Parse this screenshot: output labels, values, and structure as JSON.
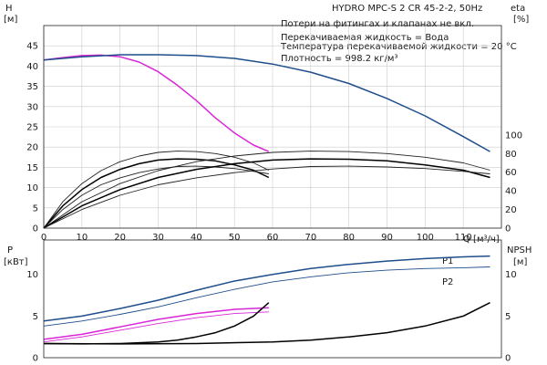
{
  "chart_data": [
    {
      "type": "line",
      "name": "pump-performance",
      "title": "HYDRO MPC-S 2 CR 45-2-2, 50Hz",
      "annotations": [
        "Потери на фитингах и клапанах не вкл.",
        "Перекачиваемая жидкость = Вода",
        "Температура перекачиваемой жидкости = 20 °C",
        "Плотность = 998.2 кг/м³"
      ],
      "xlabel": "Q [м³/ч]",
      "xlim": [
        0,
        120
      ],
      "xticks": [
        "0",
        "10",
        "20",
        "30",
        "40",
        "50",
        "60",
        "70",
        "80",
        "90",
        "100",
        "110"
      ],
      "ylabel_left": [
        "H",
        "[м]"
      ],
      "ylim_left": [
        0,
        50
      ],
      "yticks_left": [
        "0",
        "5",
        "10",
        "15",
        "20",
        "25",
        "30",
        "35",
        "40",
        "45"
      ],
      "ylabel_right": [
        "eta",
        "[%]"
      ],
      "ylim_right": [
        0,
        217.4
      ],
      "yticks_right": [
        "0",
        "20",
        "40",
        "60",
        "80",
        "100"
      ],
      "grid": true,
      "series": [
        {
          "axis": "left",
          "color": "#d926d9",
          "width": 1.5,
          "x": [
            0,
            5,
            10,
            15,
            20,
            25,
            30,
            35,
            40,
            45,
            50,
            55,
            59
          ],
          "y": [
            41.5,
            42.1,
            42.6,
            42.7,
            42.3,
            41.0,
            38.6,
            35.3,
            31.5,
            27.2,
            23.5,
            20.5,
            18.9
          ]
        },
        {
          "axis": "left",
          "color": "#1f4e8c",
          "width": 1.5,
          "x": [
            0,
            10,
            20,
            30,
            40,
            50,
            60,
            70,
            80,
            90,
            100,
            110,
            117
          ],
          "y": [
            41.5,
            42.3,
            42.8,
            42.8,
            42.6,
            41.9,
            40.5,
            38.5,
            35.7,
            32.0,
            27.7,
            22.6,
            18.9
          ]
        },
        {
          "axis": "left",
          "color": "#222222",
          "width": 0.9,
          "x": [
            0,
            5,
            10,
            15,
            20,
            25,
            30,
            35,
            40,
            45,
            50,
            55,
            59
          ],
          "y": [
            0,
            6.5,
            11,
            14.2,
            16.4,
            17.8,
            18.7,
            19.0,
            18.9,
            18.4,
            17.5,
            16.1,
            14.3
          ]
        },
        {
          "axis": "left",
          "color": "#000000",
          "width": 1.5,
          "x": [
            0,
            5,
            10,
            15,
            20,
            25,
            30,
            35,
            40,
            45,
            50,
            55,
            59
          ],
          "y": [
            0,
            5.5,
            9.5,
            12.5,
            14.5,
            15.9,
            16.8,
            17.1,
            17.0,
            16.6,
            15.6,
            14.3,
            12.5
          ]
        },
        {
          "axis": "left",
          "color": "#222222",
          "width": 0.9,
          "x": [
            0,
            5,
            10,
            15,
            20,
            25,
            30,
            35,
            40,
            45,
            50,
            55,
            59
          ],
          "y": [
            0,
            4.6,
            8.1,
            10.7,
            12.4,
            13.7,
            14.6,
            15.2,
            15.3,
            15.1,
            14.7,
            14.0,
            13.4
          ]
        },
        {
          "axis": "left",
          "color": "#222222",
          "width": 0.9,
          "x": [
            0,
            10,
            20,
            30,
            40,
            50,
            60,
            70,
            80,
            90,
            100,
            110,
            117
          ],
          "y": [
            0,
            6.5,
            11,
            14.2,
            16.4,
            17.8,
            18.7,
            19.0,
            18.9,
            18.4,
            17.5,
            16.1,
            14.3
          ]
        },
        {
          "axis": "left",
          "color": "#000000",
          "width": 1.5,
          "x": [
            0,
            10,
            20,
            30,
            40,
            50,
            60,
            70,
            80,
            90,
            100,
            110,
            117
          ],
          "y": [
            0,
            5.5,
            9.5,
            12.5,
            14.5,
            15.9,
            16.8,
            17.1,
            17.0,
            16.6,
            15.6,
            14.3,
            12.5
          ]
        },
        {
          "axis": "left",
          "color": "#222222",
          "width": 0.9,
          "x": [
            0,
            10,
            20,
            30,
            40,
            50,
            60,
            70,
            80,
            90,
            100,
            110,
            117
          ],
          "y": [
            0,
            4.6,
            8.1,
            10.7,
            12.4,
            13.7,
            14.6,
            15.2,
            15.3,
            15.1,
            14.7,
            14.0,
            13.4
          ]
        }
      ]
    },
    {
      "type": "line",
      "name": "power-npsh",
      "xlim": [
        0,
        120
      ],
      "ylabel_left": [
        "P",
        "[кВт]"
      ],
      "ylim_left": [
        0,
        14.13
      ],
      "yticks_left": [
        "0",
        "5",
        "10"
      ],
      "ylabel_right": [
        "NPSH",
        "[м]"
      ],
      "ylim_right": [
        0,
        14.13
      ],
      "yticks_right": [
        "0",
        "5",
        "10"
      ],
      "grid": false,
      "series": [
        {
          "axis": "left",
          "name": "P1",
          "color": "#1f4e8c",
          "width": 1.5,
          "x": [
            0,
            10,
            20,
            30,
            40,
            50,
            60,
            70,
            80,
            90,
            100,
            110,
            117
          ],
          "y": [
            4.4,
            5.0,
            5.9,
            6.9,
            8.1,
            9.2,
            10.0,
            10.7,
            11.2,
            11.6,
            11.9,
            12.1,
            12.2
          ]
        },
        {
          "axis": "left",
          "name": "P2",
          "color": "#1f4e8c",
          "width": 0.9,
          "x": [
            0,
            10,
            20,
            30,
            40,
            50,
            60,
            70,
            80,
            90,
            100,
            110,
            117
          ],
          "y": [
            3.8,
            4.4,
            5.2,
            6.1,
            7.2,
            8.2,
            9.1,
            9.7,
            10.2,
            10.5,
            10.7,
            10.8,
            10.9
          ]
        },
        {
          "axis": "left",
          "color": "#d926d9",
          "width": 1.5,
          "x": [
            0,
            10,
            20,
            30,
            40,
            50,
            59
          ],
          "y": [
            2.2,
            2.8,
            3.7,
            4.6,
            5.3,
            5.8,
            6.0
          ]
        },
        {
          "axis": "left",
          "color": "#d926d9",
          "width": 0.9,
          "x": [
            0,
            10,
            20,
            30,
            40,
            50,
            59
          ],
          "y": [
            1.9,
            2.5,
            3.3,
            4.1,
            4.8,
            5.3,
            5.5
          ]
        },
        {
          "axis": "right",
          "color": "#000000",
          "width": 1.5,
          "x": [
            0,
            10,
            20,
            30,
            35,
            40,
            45,
            50,
            55,
            59
          ],
          "y": [
            1.7,
            1.65,
            1.7,
            1.9,
            2.1,
            2.5,
            3.0,
            3.8,
            5.0,
            6.6
          ]
        },
        {
          "axis": "right",
          "color": "#000000",
          "width": 1.5,
          "x": [
            0,
            20,
            40,
            60,
            70,
            80,
            90,
            100,
            110,
            117
          ],
          "y": [
            1.7,
            1.65,
            1.7,
            1.9,
            2.1,
            2.5,
            3.0,
            3.8,
            5.0,
            6.6
          ]
        }
      ],
      "series_labels": [
        "P1",
        "P2"
      ]
    }
  ]
}
